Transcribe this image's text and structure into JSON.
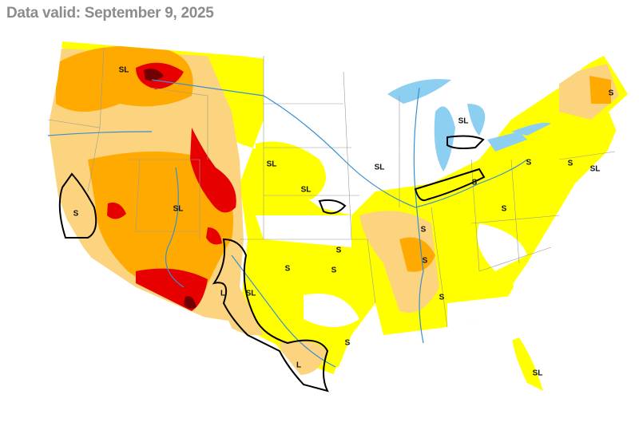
{
  "header": {
    "title": "Data valid: September 9, 2025"
  },
  "map": {
    "labels": [
      "SL",
      "SL",
      "S",
      "S",
      "S",
      "SL",
      "SL",
      "SL",
      "S",
      "SL",
      "SL",
      "S",
      "S",
      "S",
      "S",
      "S",
      "S",
      "S",
      "L",
      "SL",
      "S",
      "S",
      "L",
      "SL"
    ]
  }
}
